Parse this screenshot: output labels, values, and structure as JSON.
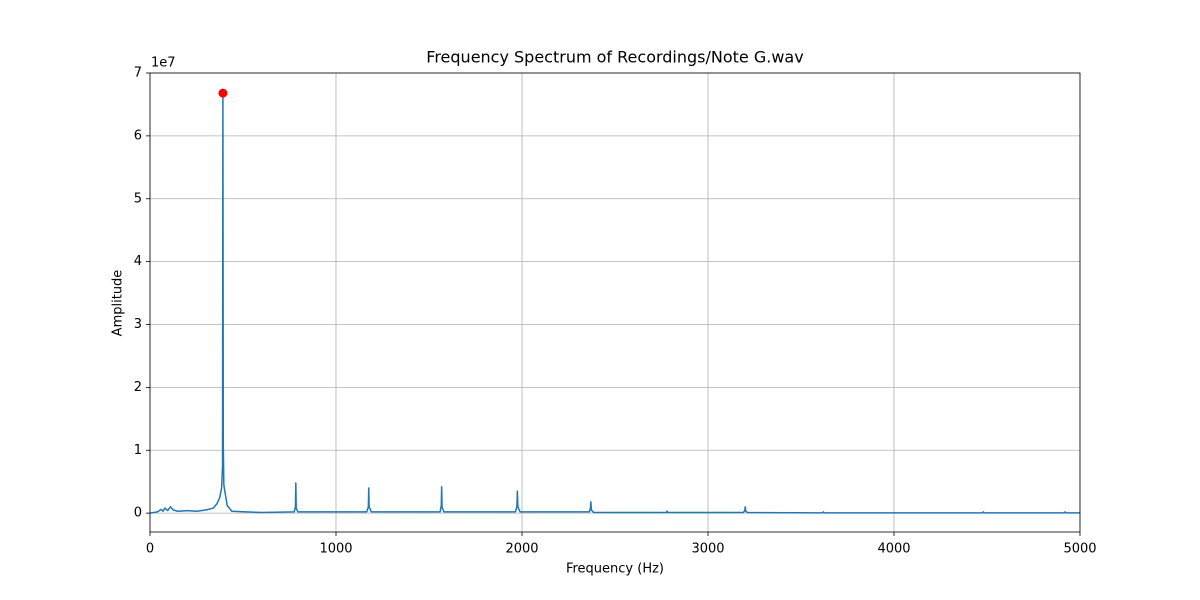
{
  "chart_data": {
    "type": "line",
    "title": "Frequency Spectrum of Recordings/Note G.wav",
    "x_label": "Frequency (Hz)",
    "y_label": "Amplitude",
    "y_offset_label": "1e7",
    "xlim": [
      0,
      5000
    ],
    "xticks": [
      0,
      1000,
      2000,
      3000,
      4000,
      5000
    ],
    "ylim": [
      -0.3,
      7
    ],
    "yticks": [
      0,
      1,
      2,
      3,
      4,
      5,
      6,
      7
    ],
    "grid": true,
    "series": [
      {
        "color": "#1f77b4",
        "x": [
          0,
          40,
          60,
          70,
          80,
          95,
          110,
          125,
          150,
          200,
          250,
          300,
          340,
          360,
          375,
          385,
          390,
          392,
          394,
          397,
          405,
          415,
          440,
          600,
          775,
          782,
          784,
          786,
          795,
          1165,
          1174,
          1176,
          1178,
          1190,
          1560,
          1566,
          1568,
          1570,
          1580,
          1965,
          1973,
          1975,
          1978,
          1990,
          2362,
          2368,
          2370,
          2373,
          2385,
          2775,
          2780,
          2785,
          3190,
          3198,
          3200,
          3203,
          3212,
          3615,
          3620,
          3625,
          4475,
          4480,
          4485,
          4915,
          4920,
          4925,
          5000
        ],
        "values": [
          0,
          0.02,
          0.06,
          0.03,
          0.08,
          0.04,
          0.1,
          0.05,
          0.03,
          0.04,
          0.03,
          0.05,
          0.08,
          0.15,
          0.25,
          0.4,
          0.75,
          6.68,
          1.1,
          0.45,
          0.3,
          0.12,
          0.03,
          0.01,
          0.02,
          0.1,
          0.48,
          0.08,
          0.02,
          0.02,
          0.1,
          0.4,
          0.1,
          0.02,
          0.02,
          0.12,
          0.42,
          0.1,
          0.02,
          0.02,
          0.12,
          0.35,
          0.1,
          0.02,
          0.02,
          0.08,
          0.18,
          0.05,
          0.01,
          0.01,
          0.03,
          0.01,
          0.01,
          0.04,
          0.1,
          0.03,
          0.01,
          0.005,
          0.02,
          0.005,
          0.005,
          0.02,
          0.005,
          0.005,
          0.02,
          0.005,
          0.005
        ]
      }
    ],
    "peak": {
      "x": 392,
      "value": 6.68,
      "color": "#ff0000"
    }
  }
}
